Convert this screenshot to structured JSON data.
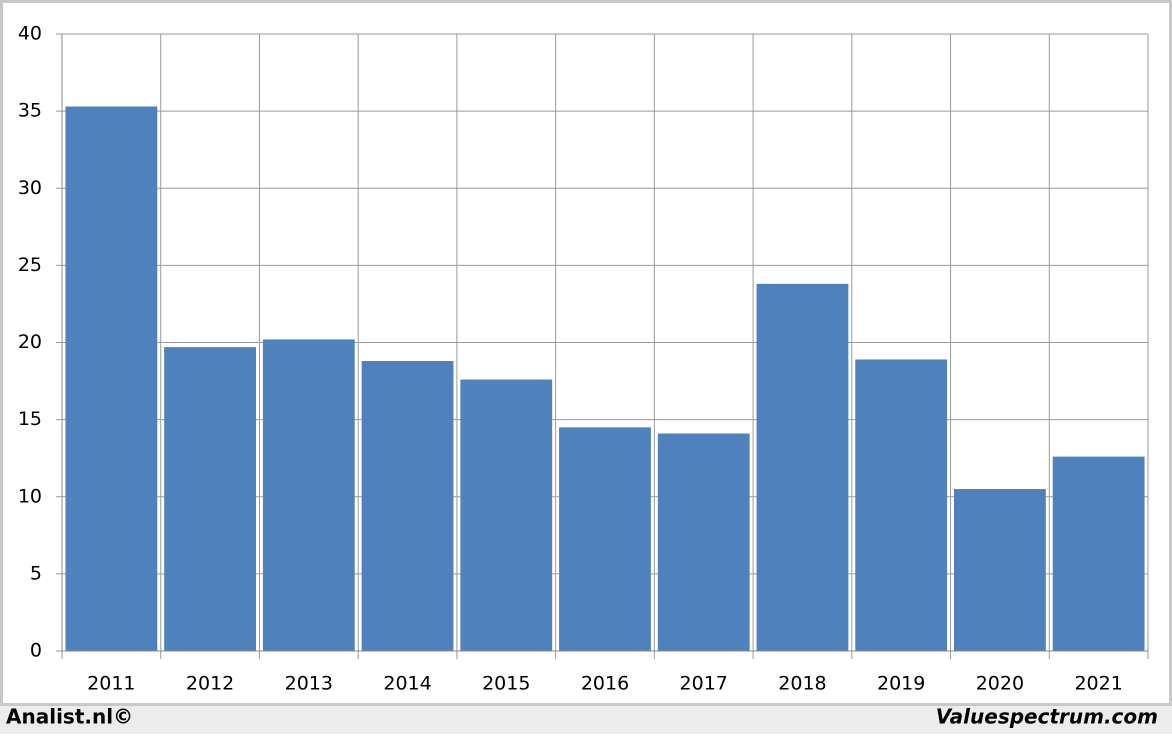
{
  "chart_data": {
    "type": "bar",
    "categories": [
      "2011",
      "2012",
      "2013",
      "2014",
      "2015",
      "2016",
      "2017",
      "2018",
      "2019",
      "2020",
      "2021"
    ],
    "values": [
      35.3,
      19.7,
      20.2,
      18.8,
      17.6,
      14.5,
      14.1,
      23.8,
      18.9,
      10.5,
      12.6
    ],
    "color": "#4f81bd",
    "ylim": [
      0,
      40
    ],
    "yticks": [
      0,
      5,
      10,
      15,
      20,
      25,
      30,
      35,
      40
    ],
    "grid": true,
    "annotations": [
      "Analist.nl©",
      "Valuespectrum.com"
    ]
  }
}
